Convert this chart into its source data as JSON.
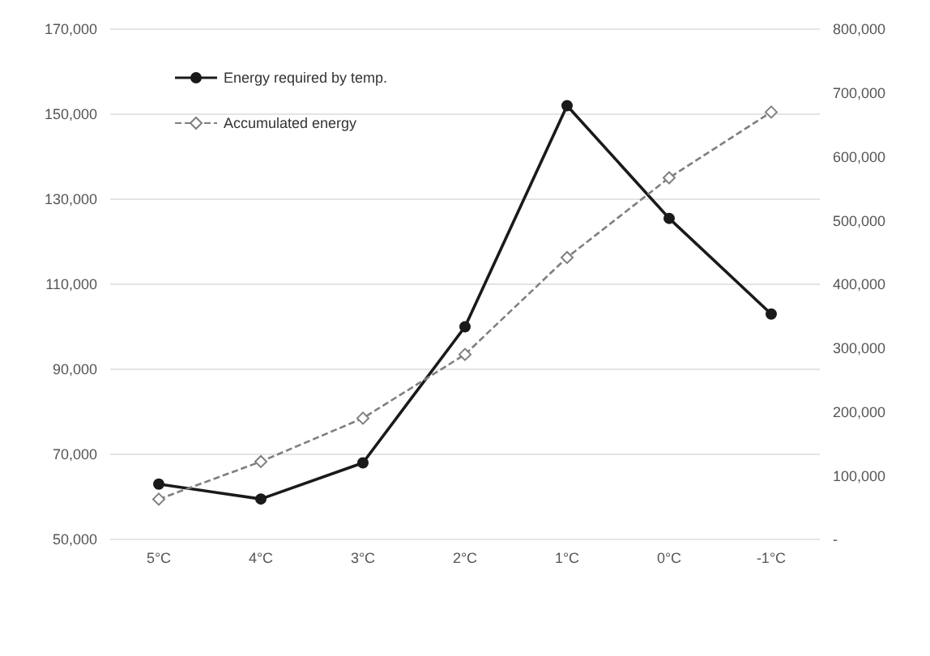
{
  "chart_data": {
    "type": "line",
    "categories": [
      "5°C",
      "4°C",
      "3°C",
      "2°C",
      "1°C",
      "0°C",
      "-1°C"
    ],
    "series": [
      {
        "name": "Energy required by temp.",
        "color": "#1a1a1a",
        "marker": "circle",
        "line_style": "solid",
        "values": [
          63000,
          59500,
          68000,
          100000,
          152000,
          125500,
          103000
        ]
      },
      {
        "name": "Accumulated energy",
        "color": "#7f7f7f",
        "marker": "diamond",
        "line_style": "dashed",
        "axis": "y2",
        "values": [
          63000,
          122000,
          190000,
          290000,
          442000,
          567000,
          670000
        ]
      }
    ],
    "ylim": [
      50000,
      170000
    ],
    "yticks": [
      {
        "value": 50000,
        "label": "50,000"
      },
      {
        "value": 70000,
        "label": "70,000"
      },
      {
        "value": 90000,
        "label": "90,000"
      },
      {
        "value": 110000,
        "label": "110,000"
      },
      {
        "value": 130000,
        "label": "130,000"
      },
      {
        "value": 150000,
        "label": "150,000"
      },
      {
        "value": 170000,
        "label": "170,000"
      }
    ],
    "y2lim": [
      0,
      800000
    ],
    "y2ticks": [
      {
        "value": 0,
        "label": "-"
      },
      {
        "value": 100000,
        "label": "100,000"
      },
      {
        "value": 200000,
        "label": "200,000"
      },
      {
        "value": 300000,
        "label": "300,000"
      },
      {
        "value": 400000,
        "label": "400,000"
      },
      {
        "value": 500000,
        "label": "500,000"
      },
      {
        "value": 600000,
        "label": "600,000"
      },
      {
        "value": 700000,
        "label": "700,000"
      },
      {
        "value": 800000,
        "label": "800,000"
      }
    ],
    "grid": "y",
    "legend": "top left"
  }
}
